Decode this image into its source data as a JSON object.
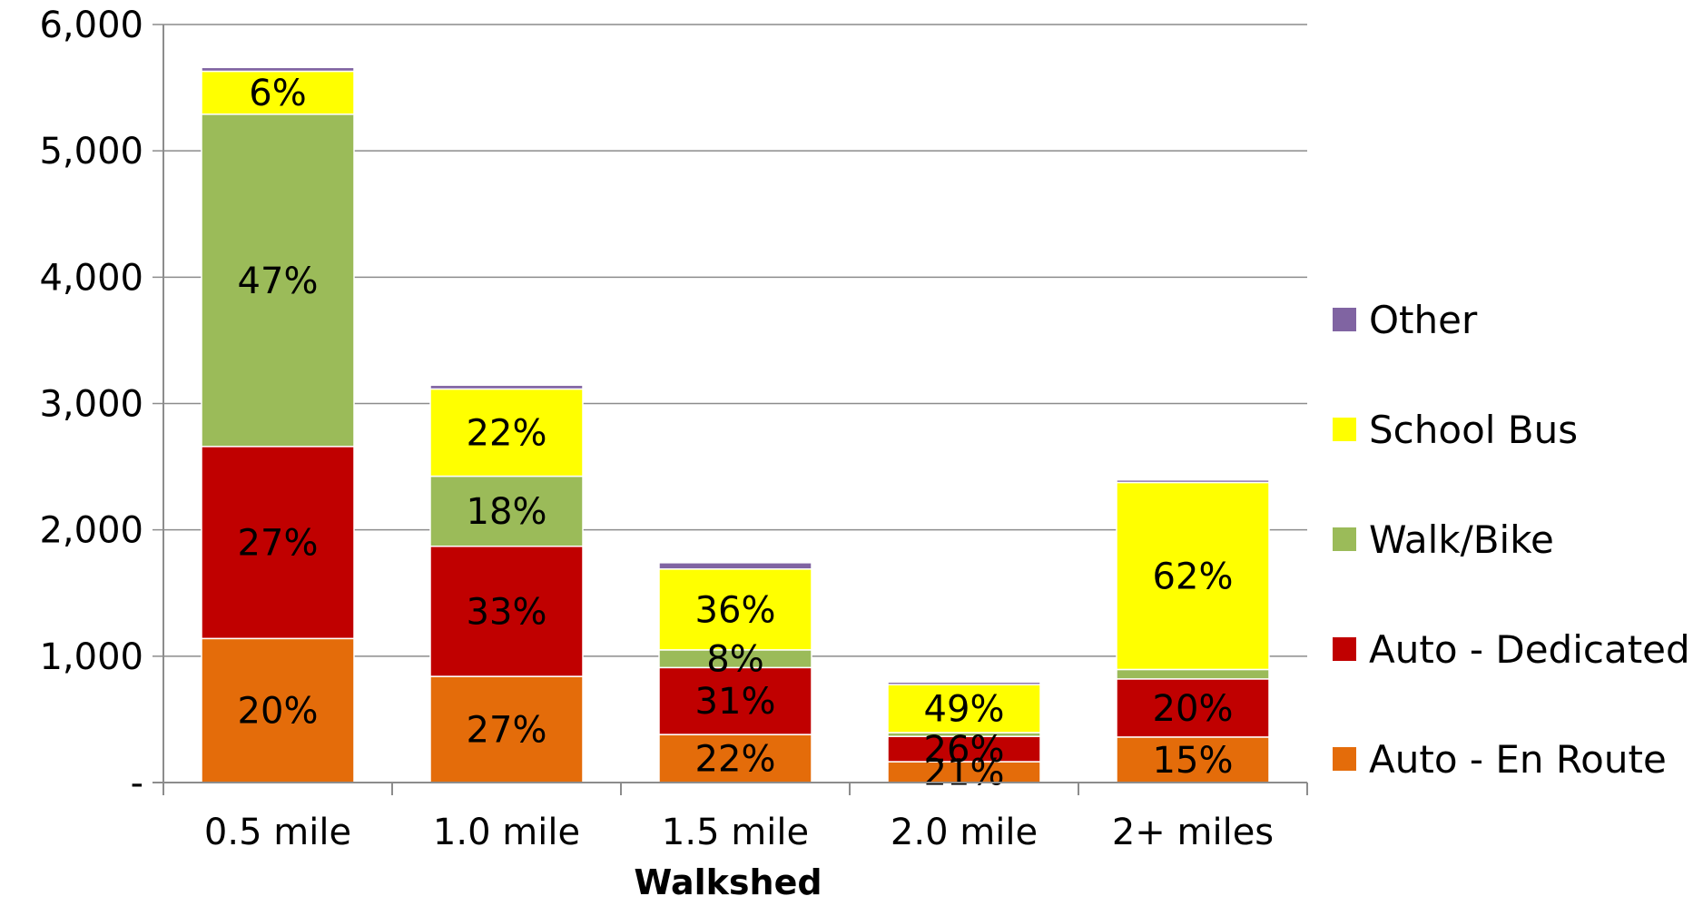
{
  "chart_data": {
    "type": "bar",
    "stacked": true,
    "title": "",
    "xlabel": "Walkshed",
    "ylabel": "",
    "ylim": [
      0,
      6000
    ],
    "yticks": [
      {
        "value": 0,
        "label": "-"
      },
      {
        "value": 1000,
        "label": "1,000"
      },
      {
        "value": 2000,
        "label": "2,000"
      },
      {
        "value": 3000,
        "label": "3,000"
      },
      {
        "value": 4000,
        "label": "4,000"
      },
      {
        "value": 5000,
        "label": "5,000"
      },
      {
        "value": 6000,
        "label": "6,000"
      }
    ],
    "grid": true,
    "legend_position": "right",
    "categories": [
      "0.5 mile",
      "1.0 mile",
      "1.5 mile",
      "2.0 mile",
      "2+ miles"
    ],
    "series": [
      {
        "name": "Auto - En Route",
        "color": "#e46c0a",
        "values": [
          1140,
          840,
          380,
          165,
          360
        ],
        "labels": [
          "20%",
          "27%",
          "22%",
          "21%",
          "15%"
        ]
      },
      {
        "name": "Auto - Dedicated",
        "color": "#c00000",
        "values": [
          1520,
          1030,
          530,
          200,
          460
        ],
        "labels": [
          "27%",
          "33%",
          "31%",
          "26%",
          "20%"
        ]
      },
      {
        "name": "Walk/Bike",
        "color": "#9bbb59",
        "values": [
          2630,
          555,
          140,
          30,
          75
        ],
        "labels": [
          "47%",
          "18%",
          "8%",
          "",
          ""
        ]
      },
      {
        "name": "School Bus",
        "color": "#ffff00",
        "values": [
          340,
          690,
          640,
          380,
          1480
        ],
        "labels": [
          "6%",
          "22%",
          "36%",
          "49%",
          "62%"
        ]
      },
      {
        "name": "Other",
        "color": "#8064a2",
        "values": [
          30,
          30,
          50,
          20,
          20
        ],
        "labels": [
          "",
          "",
          "",
          "",
          ""
        ]
      }
    ]
  }
}
